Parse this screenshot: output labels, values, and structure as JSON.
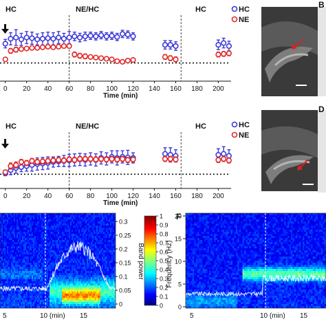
{
  "panels": {
    "top": {
      "phase_labels": [
        "HC",
        "NE/HC",
        "HC"
      ],
      "xlabel": "Time (min)",
      "legend": [
        "HC",
        "NE"
      ],
      "x_ticks": [
        "0",
        "20",
        "40",
        "60",
        "80",
        "100",
        "120",
        "140",
        "160",
        "180",
        "200"
      ]
    },
    "middle": {
      "phase_labels": [
        "HC",
        "NE/HC",
        "HC"
      ],
      "xlabel": "Time (min)",
      "legend": [
        "HC",
        "NE"
      ],
      "x_ticks": [
        "0",
        "20",
        "40",
        "60",
        "80",
        "100",
        "120",
        "140",
        "160",
        "180",
        "200"
      ]
    },
    "B_label": "B",
    "D_label": "D",
    "F_label": "F"
  },
  "spec_left": {
    "colorbar_label": "Band power",
    "colorbar_ticks": [
      "1",
      "0.9",
      "0.8",
      "0.7",
      "0.6",
      "0.5",
      "0.4",
      "0.3",
      "0.2",
      "0.1",
      "0"
    ],
    "right_axis_ticks": [
      "0.3",
      "0.25",
      "0.2",
      "0.15",
      "0.1",
      "0.05",
      "0"
    ],
    "x_ticks": [
      "5",
      "10 (min)",
      "15"
    ]
  },
  "spec_right": {
    "ylabel": "Frequency (Hz)",
    "y_ticks": [
      "20",
      "15",
      "10",
      "5",
      "0"
    ],
    "x_ticks": [
      "5",
      "10 (min)",
      "15"
    ]
  },
  "colors": {
    "hc": "#3a3ad8",
    "ne": "#e02a2a"
  },
  "chart_data": [
    {
      "type": "scatter",
      "x_range": [
        -5,
        212
      ],
      "y_range": [
        0,
        1
      ],
      "baseline": 0.3,
      "phase_boundaries": [
        60,
        165
      ],
      "series": [
        {
          "name": "HC",
          "x": [
            0,
            5,
            10,
            15,
            20,
            25,
            30,
            35,
            40,
            45,
            50,
            55,
            60,
            65,
            70,
            75,
            80,
            85,
            90,
            95,
            100,
            105,
            110,
            115,
            120,
            150,
            155,
            160,
            200,
            205,
            210
          ],
          "y": [
            0.62,
            0.7,
            0.72,
            0.69,
            0.72,
            0.71,
            0.69,
            0.7,
            0.71,
            0.7,
            0.72,
            0.7,
            0.72,
            0.74,
            0.72,
            0.74,
            0.75,
            0.74,
            0.76,
            0.74,
            0.75,
            0.73,
            0.78,
            0.77,
            0.74,
            0.6,
            0.6,
            0.58,
            0.6,
            0.63,
            0.58
          ],
          "err": [
            0.07,
            0.1,
            0.13,
            0.1,
            0.1,
            0.1,
            0.09,
            0.1,
            0.1,
            0.1,
            0.1,
            0.09,
            0.1,
            0.07,
            0.07,
            0.07,
            0.06,
            0.06,
            0.06,
            0.06,
            0.06,
            0.06,
            0.06,
            0.06,
            0.06,
            0.07,
            0.07,
            0.07,
            0.08,
            0.08,
            0.08
          ]
        },
        {
          "name": "NE",
          "x": [
            0,
            5,
            10,
            15,
            20,
            25,
            30,
            35,
            40,
            45,
            50,
            55,
            60,
            65,
            70,
            75,
            80,
            85,
            90,
            95,
            100,
            105,
            110,
            115,
            120,
            150,
            155,
            160,
            200,
            205,
            210
          ],
          "y": [
            0.36,
            0.5,
            0.52,
            0.53,
            0.54,
            0.55,
            0.55,
            0.56,
            0.57,
            0.56,
            0.57,
            0.58,
            0.58,
            0.44,
            0.42,
            0.41,
            0.4,
            0.39,
            0.38,
            0.37,
            0.36,
            0.33,
            0.32,
            0.34,
            0.35,
            0.4,
            0.38,
            0.36,
            0.44,
            0.45,
            0.46
          ],
          "err": [
            0.03,
            0.04,
            0.04,
            0.03,
            0.03,
            0.03,
            0.03,
            0.03,
            0.03,
            0.03,
            0.03,
            0.03,
            0.03,
            0.04,
            0.04,
            0.04,
            0.03,
            0.03,
            0.03,
            0.03,
            0.03,
            0.03,
            0.03,
            0.03,
            0.03,
            0.04,
            0.04,
            0.04,
            0.04,
            0.04,
            0.04
          ]
        }
      ]
    },
    {
      "type": "scatter",
      "x_range": [
        -5,
        212
      ],
      "y_range": [
        0,
        1
      ],
      "baseline": 0.28,
      "phase_boundaries": [
        60,
        165
      ],
      "series": [
        {
          "name": "HC",
          "x": [
            0,
            5,
            10,
            15,
            20,
            25,
            30,
            35,
            40,
            45,
            50,
            55,
            60,
            65,
            70,
            75,
            80,
            85,
            90,
            95,
            100,
            105,
            110,
            115,
            120,
            150,
            155,
            160,
            200,
            205,
            210
          ],
          "y": [
            0.3,
            0.36,
            0.4,
            0.42,
            0.44,
            0.46,
            0.48,
            0.49,
            0.5,
            0.52,
            0.53,
            0.54,
            0.55,
            0.56,
            0.57,
            0.56,
            0.58,
            0.56,
            0.6,
            0.58,
            0.62,
            0.6,
            0.62,
            0.61,
            0.6,
            0.68,
            0.66,
            0.64,
            0.66,
            0.68,
            0.64
          ],
          "err": [
            0.05,
            0.09,
            0.1,
            0.09,
            0.1,
            0.12,
            0.12,
            0.12,
            0.12,
            0.1,
            0.1,
            0.11,
            0.12,
            0.12,
            0.12,
            0.12,
            0.12,
            0.12,
            0.12,
            0.12,
            0.12,
            0.14,
            0.12,
            0.14,
            0.1,
            0.12,
            0.14,
            0.12,
            0.12,
            0.14,
            0.12
          ]
        },
        {
          "name": "NE",
          "x": [
            0,
            5,
            10,
            15,
            20,
            25,
            30,
            35,
            40,
            45,
            50,
            55,
            60,
            65,
            70,
            75,
            80,
            85,
            90,
            95,
            100,
            105,
            110,
            115,
            120,
            150,
            155,
            160,
            200,
            205,
            210
          ],
          "y": [
            0.32,
            0.44,
            0.46,
            0.52,
            0.5,
            0.54,
            0.52,
            0.53,
            0.54,
            0.55,
            0.56,
            0.55,
            0.57,
            0.56,
            0.58,
            0.58,
            0.58,
            0.57,
            0.58,
            0.57,
            0.58,
            0.57,
            0.58,
            0.56,
            0.57,
            0.58,
            0.58,
            0.57,
            0.56,
            0.58,
            0.55
          ],
          "err": [
            0.04,
            0.06,
            0.06,
            0.05,
            0.05,
            0.05,
            0.05,
            0.05,
            0.05,
            0.05,
            0.05,
            0.05,
            0.05,
            0.05,
            0.05,
            0.05,
            0.05,
            0.05,
            0.05,
            0.05,
            0.05,
            0.05,
            0.05,
            0.05,
            0.05,
            0.05,
            0.05,
            0.05,
            0.05,
            0.05,
            0.05
          ]
        }
      ]
    },
    {
      "type": "heatmap",
      "x_range": [
        4.5,
        19.5
      ],
      "marker_x": 10,
      "y_range": [
        0,
        20
      ],
      "band_power_range": [
        0,
        0.3
      ]
    },
    {
      "type": "heatmap",
      "x_range": [
        4.5,
        19.5
      ],
      "marker_x": 10,
      "y_range": [
        0,
        20
      ]
    }
  ]
}
